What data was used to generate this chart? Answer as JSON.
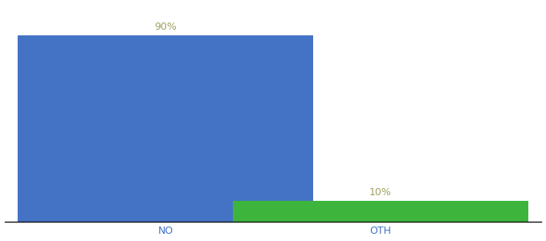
{
  "categories": [
    "NO",
    "OTH"
  ],
  "values": [
    90,
    10
  ],
  "bar_colors": [
    "#4472c4",
    "#3db53d"
  ],
  "label_texts": [
    "90%",
    "10%"
  ],
  "background_color": "#ffffff",
  "label_color": "#a0a060",
  "label_fontsize": 9,
  "tick_fontsize": 9,
  "tick_color": "#4472c4",
  "ylim": [
    0,
    105
  ],
  "bar_width": 0.55,
  "x_positions": [
    0.3,
    0.7
  ],
  "xlim": [
    0.0,
    1.0
  ]
}
